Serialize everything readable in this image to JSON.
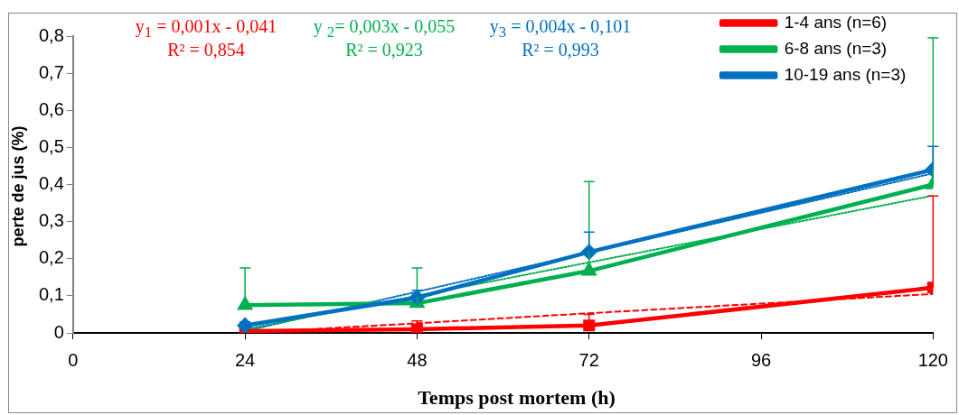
{
  "chart_data": {
    "type": "line",
    "xlabel": "Temps post mortem (h)",
    "ylabel": "perte de jus (%)",
    "annotations": [
      "y$_{1}$ = 0,001x - 0,041",
      "R² = 0,854",
      "y $_{2}$= 0,003x - 0,055",
      "R² = 0,923",
      "y$_{3}$ = 0,004x - 0,101",
      "R² = 0,993"
    ],
    "x": [
      24,
      48,
      72,
      120
    ],
    "series": [
      {
        "name": "1-4 ans (n=6)",
        "color": "#ff0000",
        "marker": "square",
        "values": [
          0.005,
          0.01,
          0.02,
          0.122
        ],
        "errors": [
          null,
          [
            0.01,
            0.032
          ],
          [
            0.02,
            0.05
          ],
          [
            0.122,
            0.369
          ]
        ]
      },
      {
        "name": "6-8 ans (n=3)",
        "color": "#00b050",
        "marker": "triangle",
        "values": [
          0.075,
          0.08,
          0.167,
          0.4
        ],
        "errors": [
          [
            0.075,
            0.175
          ],
          [
            0.08,
            0.175
          ],
          [
            0.167,
            0.408
          ],
          [
            0.4,
            0.795
          ]
        ]
      },
      {
        "name": "10-19 ans (n=3)",
        "color": "#0070c0",
        "marker": "diamond",
        "values": [
          0.02,
          0.095,
          0.218,
          0.44
        ],
        "errors": [
          [
            0.02,
            0.03
          ],
          [
            0.095,
            0.115
          ],
          [
            0.218,
            0.272
          ],
          [
            0.44,
            0.503
          ]
        ]
      },
      {
        "type": "line",
        "color": "#ff0000",
        "line_style": "dashed",
        "marker": "none",
        "values": [
          0.0,
          0.026,
          0.053,
          0.105
        ]
      },
      {
        "type": "line",
        "color": "#00b050",
        "line_style": "dotted",
        "marker": "none",
        "values": [
          0.01,
          0.1,
          0.19,
          0.37
        ]
      },
      {
        "type": "line",
        "color": "#0070c0",
        "line_style": "dotted",
        "marker": "none",
        "values": [
          0.005,
          0.111,
          0.217,
          0.43
        ]
      }
    ],
    "xlim": [
      0,
      120
    ],
    "xticks": [
      0,
      24,
      48,
      72,
      96,
      120
    ],
    "ylim": [
      0,
      0.8
    ],
    "yticks": [
      {
        "value": 0,
        "label": "0"
      },
      {
        "value": 0.1,
        "label": "0,1"
      },
      {
        "value": 0.2,
        "label": "0,2"
      },
      {
        "value": 0.3,
        "label": "0,3"
      },
      {
        "value": 0.4,
        "label": "0,4"
      },
      {
        "value": 0.5,
        "label": "0,5"
      },
      {
        "value": 0.6,
        "label": "0,6"
      },
      {
        "value": 0.7,
        "label": "0,7"
      },
      {
        "value": 0.8,
        "label": "0,8"
      }
    ],
    "grid": false,
    "legend": "top right"
  }
}
